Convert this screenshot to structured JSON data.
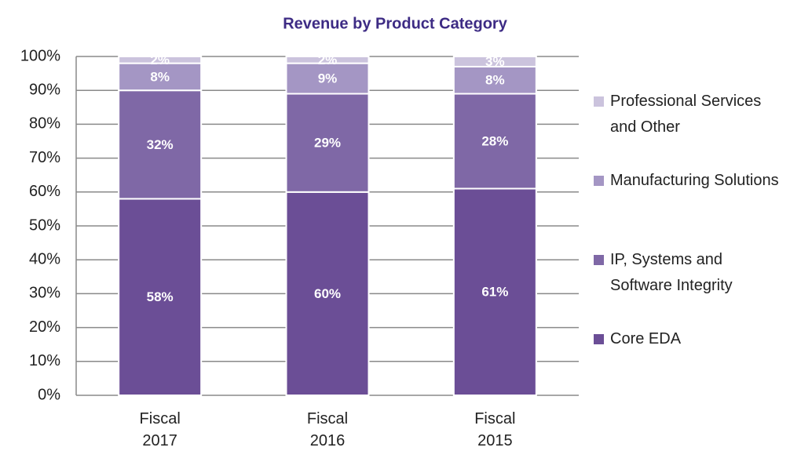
{
  "chart_data": {
    "type": "stacked_bar",
    "title": "Revenue by Product Category",
    "categories": [
      "Fiscal 2017",
      "Fiscal 2016",
      "Fiscal 2015"
    ],
    "series": [
      {
        "name": "Core EDA",
        "color": "#6b4e96",
        "values": [
          58,
          60,
          61
        ],
        "value_labels": [
          "58%",
          "60%",
          "61%"
        ]
      },
      {
        "name": "IP, Systems and Software Integrity",
        "color": "#7f68a6",
        "values": [
          32,
          29,
          28
        ],
        "value_labels": [
          "32%",
          "29%",
          "28%"
        ]
      },
      {
        "name": "Manufacturing Solutions",
        "color": "#a496c4",
        "values": [
          8,
          9,
          8
        ],
        "value_labels": [
          "8%",
          "9%",
          "8%"
        ]
      },
      {
        "name": "Professional Services and Other",
        "color": "#cbc3dd",
        "values": [
          2,
          2,
          3
        ],
        "value_labels": [
          "2%",
          "2%",
          "3%"
        ]
      }
    ],
    "ylim": [
      0,
      100
    ],
    "yticks": [
      {
        "value": 0,
        "label": "0%"
      },
      {
        "value": 10,
        "label": "10%"
      },
      {
        "value": 20,
        "label": "20%"
      },
      {
        "value": 30,
        "label": "30%"
      },
      {
        "value": 40,
        "label": "40%"
      },
      {
        "value": 50,
        "label": "50%"
      },
      {
        "value": 60,
        "label": "60%"
      },
      {
        "value": 70,
        "label": "70%"
      },
      {
        "value": 80,
        "label": "80%"
      },
      {
        "value": 90,
        "label": "90%"
      },
      {
        "value": 100,
        "label": "100%"
      }
    ],
    "grid": true,
    "legend": "right"
  }
}
